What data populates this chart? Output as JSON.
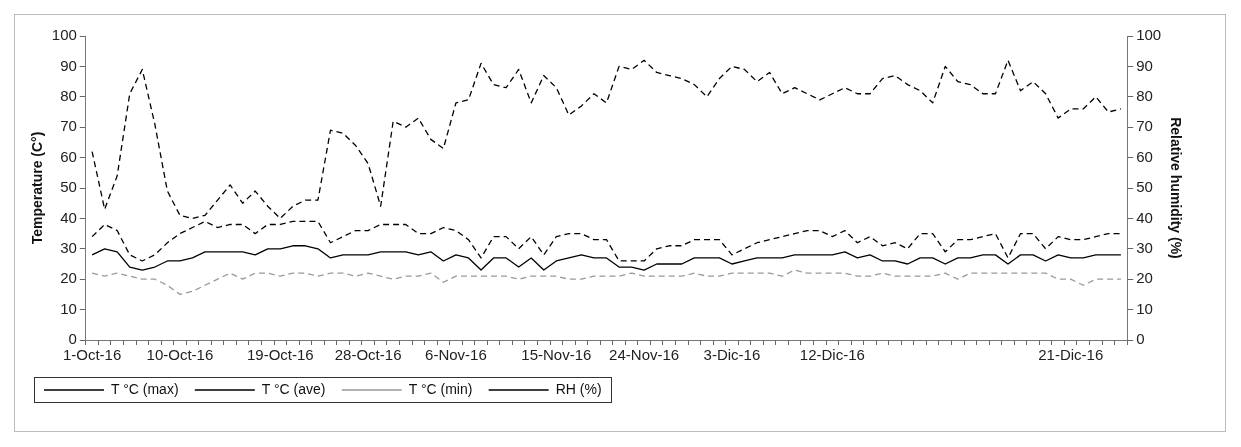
{
  "chart_data": {
    "type": "line",
    "ylabel": "Temperature (C°)",
    "y2label": "Relative humidity (%)",
    "categories": [
      "1-Oct-16",
      null,
      null,
      null,
      null,
      null,
      null,
      "10-Oct-16",
      null,
      null,
      null,
      null,
      null,
      null,
      null,
      "19-Oct-16",
      null,
      null,
      null,
      null,
      null,
      null,
      "28-Oct-16",
      null,
      null,
      null,
      null,
      null,
      null,
      "6-Nov-16",
      null,
      null,
      null,
      null,
      null,
      null,
      null,
      "15-Nov-16",
      null,
      null,
      null,
      null,
      null,
      null,
      "24-Nov-16",
      null,
      null,
      null,
      null,
      null,
      null,
      "3-Dic-16",
      null,
      null,
      null,
      null,
      null,
      null,
      null,
      "12-Dic-16",
      null,
      null,
      null,
      null,
      null,
      null,
      null,
      null,
      null,
      null,
      null,
      null,
      null,
      null,
      null,
      null,
      null,
      null,
      "21-Dic-16",
      null,
      null,
      null,
      null
    ],
    "ylim": [
      0,
      100
    ],
    "yticks": [
      0,
      10,
      20,
      30,
      40,
      50,
      60,
      70,
      80,
      90,
      100
    ],
    "y2lim": [
      0,
      100
    ],
    "y2ticks": [
      0,
      10,
      20,
      30,
      40,
      50,
      60,
      70,
      80,
      90,
      100
    ],
    "grid": false,
    "legend": "bottom",
    "marker": "none",
    "series": [
      {
        "name": "T °C (max)",
        "color": "#000000",
        "line_style": "dashed",
        "values": [
          34,
          38,
          36,
          28,
          26,
          28,
          32,
          35,
          37,
          39,
          37,
          38,
          38,
          35,
          38,
          38,
          39,
          39,
          39,
          32,
          34,
          36,
          36,
          38,
          38,
          38,
          35,
          35,
          37,
          36,
          33,
          27,
          34,
          34,
          30,
          34,
          28,
          34,
          35,
          35,
          33,
          33,
          26,
          26,
          26,
          30,
          31,
          31,
          33,
          33,
          33,
          28,
          30,
          32,
          33,
          34,
          35,
          36,
          36,
          34,
          36,
          32,
          34,
          31,
          32,
          30,
          35,
          35,
          29,
          33,
          33,
          34,
          35,
          27,
          35,
          35,
          30,
          34,
          33,
          33,
          34,
          35,
          35
        ]
      },
      {
        "name": "T °C (ave)",
        "color": "#000000",
        "line_style": "solid",
        "values": [
          28,
          30,
          29,
          24,
          23,
          24,
          26,
          26,
          27,
          29,
          29,
          29,
          29,
          28,
          30,
          30,
          31,
          31,
          30,
          27,
          28,
          28,
          28,
          29,
          29,
          29,
          28,
          29,
          26,
          28,
          27,
          23,
          27,
          27,
          24,
          27,
          23,
          26,
          27,
          28,
          27,
          27,
          24,
          24,
          23,
          25,
          25,
          25,
          27,
          27,
          27,
          25,
          26,
          27,
          27,
          27,
          28,
          28,
          28,
          28,
          29,
          27,
          28,
          26,
          26,
          25,
          27,
          27,
          25,
          27,
          27,
          28,
          28,
          25,
          28,
          28,
          26,
          28,
          27,
          27,
          28,
          28,
          28
        ]
      },
      {
        "name": "T °C (min)",
        "color": "#999999",
        "line_style": "dashed",
        "values": [
          22,
          21,
          22,
          21,
          20,
          20,
          18,
          15,
          16,
          18,
          20,
          22,
          20,
          22,
          22,
          21,
          22,
          22,
          21,
          22,
          22,
          21,
          22,
          21,
          20,
          21,
          21,
          22,
          19,
          21,
          21,
          21,
          21,
          21,
          20,
          21,
          21,
          21,
          20,
          20,
          21,
          21,
          21,
          22,
          21,
          21,
          21,
          21,
          22,
          21,
          21,
          22,
          22,
          22,
          22,
          21,
          23,
          22,
          22,
          22,
          22,
          21,
          21,
          22,
          21,
          21,
          21,
          21,
          22,
          20,
          22,
          22,
          22,
          22,
          22,
          22,
          22,
          20,
          20,
          18,
          20,
          20,
          20
        ]
      },
      {
        "name": "RH (%)",
        "color": "#000000",
        "line_style": "dashed",
        "axis": "y2",
        "values": [
          62,
          43,
          54,
          81,
          89,
          71,
          49,
          41,
          40,
          41,
          46,
          51,
          45,
          49,
          44,
          40,
          44,
          46,
          46,
          69,
          68,
          64,
          58,
          44,
          72,
          70,
          73,
          66,
          63,
          78,
          79,
          91,
          84,
          83,
          89,
          78,
          87,
          83,
          74,
          77,
          81,
          78,
          90,
          89,
          92,
          88,
          87,
          86,
          84,
          80,
          86,
          90,
          89,
          85,
          88,
          81,
          83,
          81,
          79,
          81,
          83,
          81,
          81,
          86,
          87,
          84,
          82,
          78,
          90,
          85,
          84,
          81,
          81,
          92,
          82,
          85,
          81,
          73,
          76,
          76,
          80,
          75,
          76
        ]
      }
    ]
  }
}
